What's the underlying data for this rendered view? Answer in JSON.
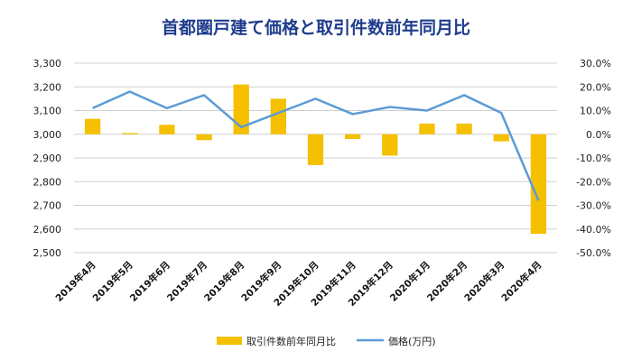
{
  "chart_data": {
    "type": "bar+line",
    "title": "首都圏戸建て価格と取引件数前年同月比",
    "categories": [
      "2019年4月",
      "2019年5月",
      "2019年6月",
      "2019年7月",
      "2019年8月",
      "2019年9月",
      "2019年10月",
      "2019年11月",
      "2019年12月",
      "2020年1月",
      "2020年2月",
      "2020年3月",
      "2020年4月"
    ],
    "y_left": {
      "min": 2500,
      "max": 3300,
      "ticks": [
        "2,500",
        "2,600",
        "2,700",
        "2,800",
        "2,900",
        "3,000",
        "3,100",
        "3,200",
        "3,300"
      ]
    },
    "y_right": {
      "min": -50,
      "max": 30,
      "ticks": [
        "-50.0%",
        "-40.0%",
        "-30.0%",
        "-20.0%",
        "-10.0%",
        "0.0%",
        "10.0%",
        "20.0%",
        "30.0%"
      ]
    },
    "series": [
      {
        "name": "取引件数前年同月比",
        "type": "bar",
        "axis": "right",
        "color": "#f5c000",
        "values": [
          6.5,
          0.5,
          4.0,
          -2.5,
          21.0,
          15.0,
          -13.0,
          -2.0,
          -9.0,
          4.5,
          4.5,
          -3.0,
          -42.0
        ]
      },
      {
        "name": "価格(万円)",
        "type": "line",
        "axis": "left",
        "color": "#5b9bd5",
        "values": [
          3110,
          3180,
          3110,
          3165,
          3030,
          3090,
          3150,
          3085,
          3115,
          3100,
          3165,
          3090,
          2720
        ]
      }
    ],
    "grid": "horizontal",
    "legend_position": "bottom"
  }
}
